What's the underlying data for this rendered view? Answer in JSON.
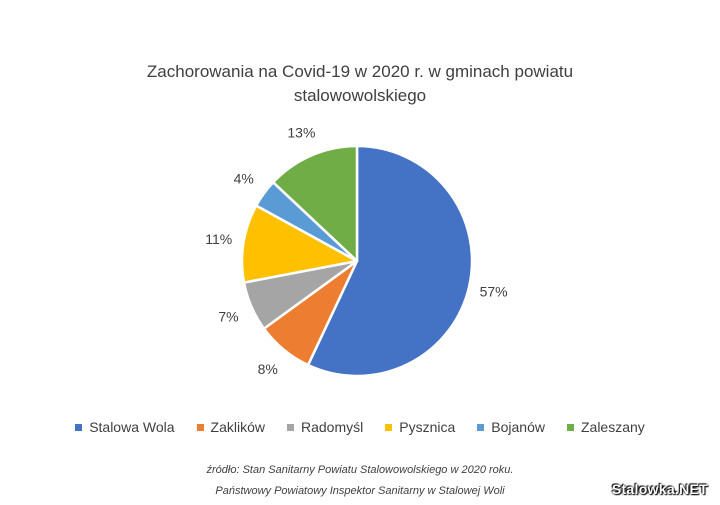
{
  "chart_data": {
    "type": "pie",
    "title_line1": "Zachorowania na Covid-19 w 2020 r. w gminach powiatu",
    "title_line2": "stalowowolskiego",
    "labels": [
      "Stalowa Wola",
      "Zaklików",
      "Radomyśl",
      "Pysznica",
      "Bojanów",
      "Zaleszany"
    ],
    "values": [
      57,
      8,
      7,
      11,
      4,
      13
    ],
    "value_labels": [
      "57%",
      "8%",
      "7%",
      "11%",
      "4%",
      "13%"
    ],
    "colors": [
      "#4472C4",
      "#ED7D31",
      "#A5A5A5",
      "#FFC000",
      "#5B9BD5",
      "#70AD47"
    ],
    "legend_position": "bottom"
  },
  "source": {
    "line1": "źródło: Stan Sanitarny Powiatu Stalowowolskiego w 2020 roku.",
    "line2": "Państwowy Powiatowy Inspektor Sanitarny w Stalowej Woli"
  },
  "watermark": "Stalowka.NET"
}
